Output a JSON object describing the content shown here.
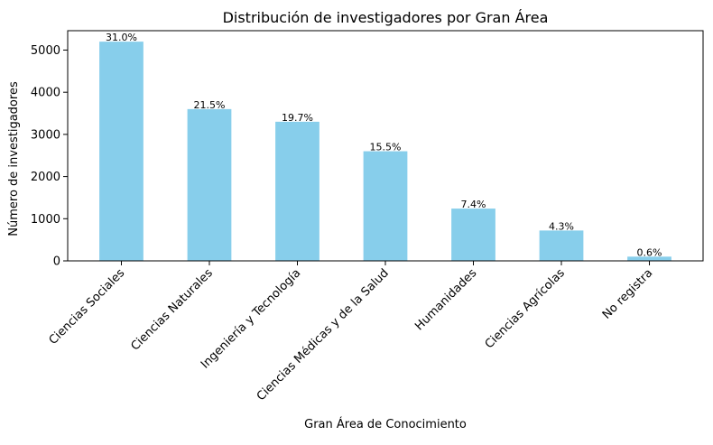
{
  "chart_data": {
    "type": "bar",
    "title": "Distribución de investigadores por Gran Área",
    "xlabel": "Gran Área de Conocimiento",
    "ylabel": "Número de investigadores",
    "categories": [
      "Ciencias Sociales",
      "Ciencias Naturales",
      "Ingeniería y Tecnología",
      "Ciencias Médicas y de la Salud",
      "Humanidades",
      "Ciencias Agrícolas",
      "No registra"
    ],
    "values": [
      5200,
      3600,
      3300,
      2600,
      1240,
      720,
      100
    ],
    "data_labels": [
      "31.0%",
      "21.5%",
      "19.7%",
      "15.5%",
      "7.4%",
      "4.3%",
      "0.6%"
    ],
    "ylim": [
      0,
      5460
    ],
    "yticks": [
      0,
      1000,
      2000,
      3000,
      4000,
      5000
    ],
    "ytick_labels": [
      "0",
      "1000",
      "2000",
      "3000",
      "4000",
      "5000"
    ],
    "grid": false,
    "bar_color": "#87CEEB"
  }
}
